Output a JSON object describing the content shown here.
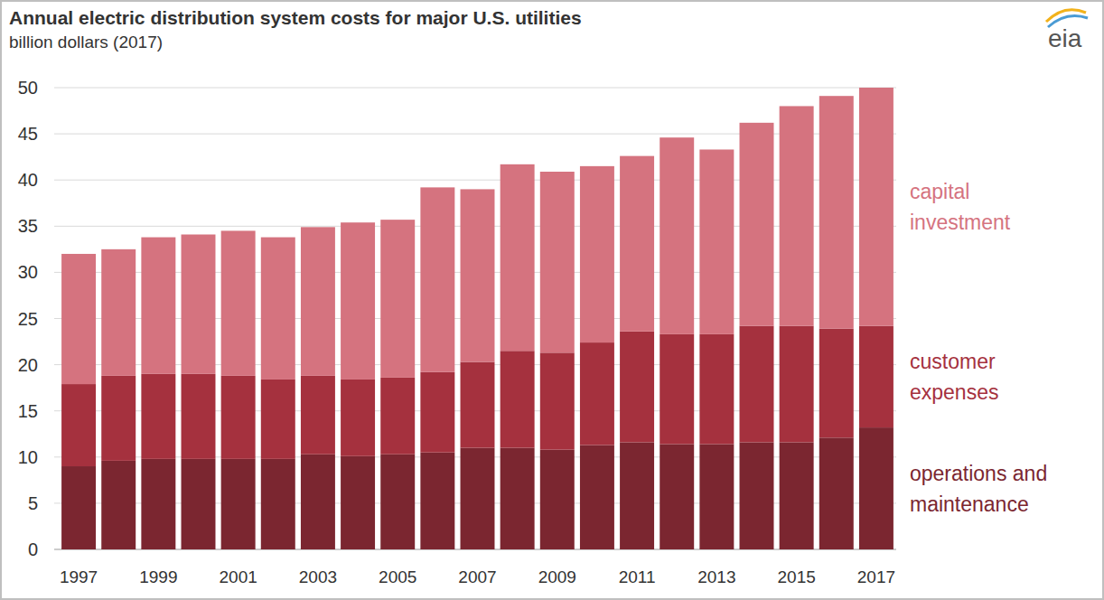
{
  "chart_data": {
    "type": "bar",
    "stacked": true,
    "grid": true,
    "legend": "right",
    "title": "Annual electric distribution system costs for major U.S. utilities",
    "subtitle": "billion dollars (2017)",
    "categories": [
      "1997",
      null,
      "1999",
      null,
      "2001",
      null,
      "2003",
      null,
      "2005",
      null,
      "2007",
      null,
      "2009",
      null,
      "2011",
      null,
      "2013",
      null,
      "2015",
      null,
      "2017"
    ],
    "ylim": [
      0,
      50
    ],
    "yticks": [
      0,
      5,
      10,
      15,
      20,
      25,
      30,
      35,
      40,
      45,
      50
    ],
    "series": [
      {
        "name": "operations and maintenance",
        "color": "#7b2630",
        "values": [
          9.0,
          9.6,
          9.8,
          9.8,
          9.8,
          9.8,
          10.3,
          10.1,
          10.3,
          10.5,
          11.0,
          11.0,
          10.8,
          11.3,
          11.6,
          11.4,
          11.4,
          11.6,
          11.6,
          12.1,
          13.2
        ]
      },
      {
        "name": "customer expenses",
        "color": "#a5313e",
        "values": [
          8.9,
          9.2,
          9.2,
          9.2,
          9.0,
          8.6,
          8.5,
          8.3,
          8.3,
          8.7,
          9.3,
          10.5,
          10.5,
          11.1,
          12.0,
          11.9,
          11.9,
          12.6,
          12.6,
          11.8,
          11.0
        ]
      },
      {
        "name": "capital investment",
        "color": "#d5737f",
        "values": [
          14.1,
          13.7,
          14.8,
          15.1,
          15.7,
          15.4,
          16.1,
          17.0,
          17.1,
          20.0,
          18.7,
          20.2,
          19.6,
          19.1,
          19.0,
          21.3,
          20.0,
          22.0,
          23.8,
          25.2,
          25.8
        ]
      }
    ]
  },
  "logo": "eia"
}
